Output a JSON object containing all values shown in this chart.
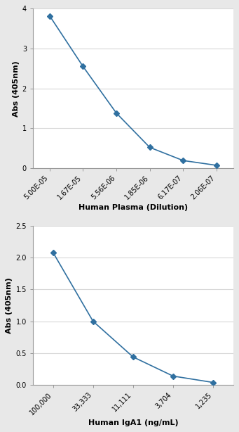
{
  "plot1": {
    "x_labels": [
      "5.00E-05",
      "1.67E-05",
      "5.56E-06",
      "1.85E-06",
      "6.17E-07",
      "2.06E-07"
    ],
    "y_values": [
      3.82,
      2.55,
      1.38,
      0.52,
      0.19,
      0.07
    ],
    "xlabel": "Human Plasma (Dilution)",
    "ylabel": "Abs (405nm)",
    "ylim": [
      0,
      4
    ],
    "yticks": [
      0,
      1,
      2,
      3,
      4
    ],
    "line_color": "#3070A0",
    "marker": "D",
    "markersize": 4
  },
  "plot2": {
    "x_labels": [
      "100,000",
      "33,333",
      "11,111",
      "3,704",
      "1,235"
    ],
    "y_values": [
      2.08,
      1.0,
      0.44,
      0.14,
      0.04
    ],
    "xlabel": "Human IgA1 (ng/mL)",
    "ylabel": "Abs (405nm)",
    "ylim": [
      0,
      2.5
    ],
    "yticks": [
      0,
      0.5,
      1.0,
      1.5,
      2.0,
      2.5
    ],
    "line_color": "#3070A0",
    "marker": "D",
    "markersize": 4
  },
  "bg_color": "#E8E8E8",
  "plot_bg_color": "#FFFFFF",
  "grid_color": "#D8D8D8",
  "tick_fontsize": 7,
  "axis_label_fontsize": 8,
  "spine_color": "#999999"
}
